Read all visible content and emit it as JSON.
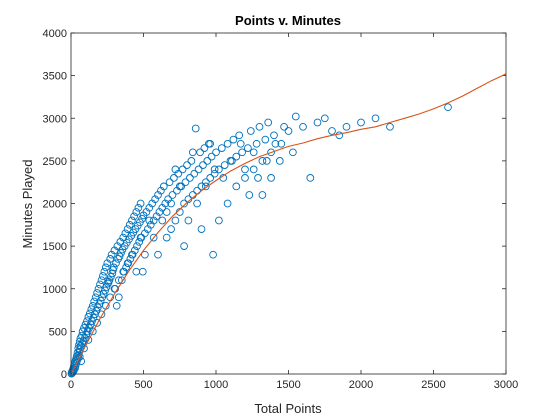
{
  "chart_data": {
    "type": "scatter",
    "title": "Points v. Minutes",
    "xlabel": "Total Points",
    "ylabel": "Minutes Played",
    "xlim": [
      0,
      3000
    ],
    "ylim": [
      0,
      4000
    ],
    "x_ticks": [
      "0",
      "500",
      "1000",
      "1500",
      "2000",
      "2500",
      "3000"
    ],
    "y_ticks": [
      "0",
      "500",
      "1000",
      "1500",
      "2000",
      "2500",
      "3000",
      "3500",
      "4000"
    ],
    "x_tick_values": [
      0,
      500,
      1000,
      1500,
      2000,
      2500,
      3000
    ],
    "y_tick_values": [
      0,
      500,
      1000,
      1500,
      2000,
      2500,
      3000,
      3500,
      4000
    ],
    "grid": false,
    "colors": {
      "points": "#0072BD",
      "fit": "#D95319"
    },
    "series": [
      {
        "kind": "scatter",
        "points": [
          [
            3,
            5
          ],
          [
            5,
            20
          ],
          [
            8,
            10
          ],
          [
            10,
            40
          ],
          [
            12,
            25
          ],
          [
            15,
            60
          ],
          [
            18,
            35
          ],
          [
            20,
            90
          ],
          [
            22,
            50
          ],
          [
            25,
            120
          ],
          [
            28,
            70
          ],
          [
            30,
            150
          ],
          [
            32,
            100
          ],
          [
            35,
            180
          ],
          [
            38,
            130
          ],
          [
            40,
            210
          ],
          [
            42,
            160
          ],
          [
            45,
            250
          ],
          [
            48,
            190
          ],
          [
            50,
            300
          ],
          [
            52,
            220
          ],
          [
            55,
            340
          ],
          [
            58,
            260
          ],
          [
            60,
            380
          ],
          [
            62,
            290
          ],
          [
            65,
            420
          ],
          [
            68,
            330
          ],
          [
            70,
            150
          ],
          [
            75,
            450
          ],
          [
            78,
            360
          ],
          [
            80,
            500
          ],
          [
            85,
            390
          ],
          [
            90,
            540
          ],
          [
            95,
            420
          ],
          [
            100,
            580
          ],
          [
            105,
            460
          ],
          [
            110,
            620
          ],
          [
            115,
            500
          ],
          [
            120,
            670
          ],
          [
            125,
            540
          ],
          [
            130,
            710
          ],
          [
            135,
            580
          ],
          [
            140,
            760
          ],
          [
            145,
            620
          ],
          [
            150,
            800
          ],
          [
            155,
            660
          ],
          [
            160,
            850
          ],
          [
            165,
            700
          ],
          [
            170,
            900
          ],
          [
            175,
            740
          ],
          [
            180,
            950
          ],
          [
            185,
            780
          ],
          [
            190,
            1000
          ],
          [
            195,
            820
          ],
          [
            200,
            1050
          ],
          [
            205,
            860
          ],
          [
            210,
            1100
          ],
          [
            215,
            900
          ],
          [
            220,
            1150
          ],
          [
            225,
            940
          ],
          [
            230,
            1200
          ],
          [
            235,
            980
          ],
          [
            240,
            1250
          ],
          [
            245,
            1020
          ],
          [
            250,
            1300
          ],
          [
            255,
            1060
          ],
          [
            260,
            1080
          ],
          [
            265,
            1100
          ],
          [
            270,
            1350
          ],
          [
            275,
            1140
          ],
          [
            280,
            1400
          ],
          [
            285,
            1180
          ],
          [
            290,
            1220
          ],
          [
            295,
            1250
          ],
          [
            300,
            1450
          ],
          [
            305,
            1000
          ],
          [
            310,
            1300
          ],
          [
            315,
            800
          ],
          [
            320,
            1500
          ],
          [
            325,
            1350
          ],
          [
            330,
            900
          ],
          [
            335,
            1380
          ],
          [
            340,
            1550
          ],
          [
            345,
            1420
          ],
          [
            350,
            1100
          ],
          [
            355,
            1460
          ],
          [
            360,
            1600
          ],
          [
            365,
            1200
          ],
          [
            370,
            1500
          ],
          [
            375,
            1650
          ],
          [
            380,
            1250
          ],
          [
            385,
            1540
          ],
          [
            390,
            1700
          ],
          [
            395,
            1300
          ],
          [
            400,
            1580
          ],
          [
            405,
            1750
          ],
          [
            410,
            1350
          ],
          [
            415,
            1620
          ],
          [
            420,
            1800
          ],
          [
            425,
            1400
          ],
          [
            430,
            1660
          ],
          [
            435,
            1850
          ],
          [
            440,
            1450
          ],
          [
            445,
            1700
          ],
          [
            450,
            1900
          ],
          [
            455,
            1500
          ],
          [
            460,
            1740
          ],
          [
            465,
            1950
          ],
          [
            470,
            1550
          ],
          [
            475,
            1780
          ],
          [
            480,
            2000
          ],
          [
            485,
            1600
          ],
          [
            490,
            1820
          ],
          [
            495,
            1200
          ],
          [
            500,
            1860
          ],
          [
            510,
            1650
          ],
          [
            520,
            1900
          ],
          [
            530,
            1700
          ],
          [
            540,
            1950
          ],
          [
            550,
            1750
          ],
          [
            560,
            2000
          ],
          [
            570,
            1800
          ],
          [
            580,
            2050
          ],
          [
            590,
            1850
          ],
          [
            600,
            2100
          ],
          [
            610,
            1900
          ],
          [
            620,
            2150
          ],
          [
            630,
            1950
          ],
          [
            640,
            2200
          ],
          [
            650,
            2000
          ],
          [
            660,
            1600
          ],
          [
            670,
            2050
          ],
          [
            680,
            2250
          ],
          [
            690,
            1700
          ],
          [
            700,
            2100
          ],
          [
            710,
            2300
          ],
          [
            720,
            1800
          ],
          [
            730,
            2150
          ],
          [
            740,
            2350
          ],
          [
            750,
            1900
          ],
          [
            760,
            2200
          ],
          [
            770,
            2400
          ],
          [
            780,
            2000
          ],
          [
            790,
            2250
          ],
          [
            800,
            2450
          ],
          [
            810,
            2050
          ],
          [
            820,
            2300
          ],
          [
            830,
            2500
          ],
          [
            840,
            2100
          ],
          [
            850,
            2350
          ],
          [
            860,
            2880
          ],
          [
            870,
            2150
          ],
          [
            880,
            2400
          ],
          [
            890,
            2600
          ],
          [
            900,
            2200
          ],
          [
            910,
            2450
          ],
          [
            920,
            2650
          ],
          [
            930,
            2250
          ],
          [
            940,
            2500
          ],
          [
            950,
            2700
          ],
          [
            960,
            2300
          ],
          [
            970,
            2550
          ],
          [
            980,
            1400
          ],
          [
            990,
            2350
          ],
          [
            1000,
            2600
          ],
          [
            1020,
            2400
          ],
          [
            1040,
            2650
          ],
          [
            1060,
            2450
          ],
          [
            1080,
            2700
          ],
          [
            1100,
            2500
          ],
          [
            1120,
            2750
          ],
          [
            1140,
            2550
          ],
          [
            1160,
            2800
          ],
          [
            1180,
            2600
          ],
          [
            1200,
            2300
          ],
          [
            1220,
            2650
          ],
          [
            1240,
            2850
          ],
          [
            1260,
            2400
          ],
          [
            1280,
            2700
          ],
          [
            1300,
            2900
          ],
          [
            1320,
            2500
          ],
          [
            1340,
            2750
          ],
          [
            1360,
            2950
          ],
          [
            1380,
            2600
          ],
          [
            1400,
            2800
          ],
          [
            1450,
            2700
          ],
          [
            1500,
            2850
          ],
          [
            1550,
            3020
          ],
          [
            1600,
            2900
          ],
          [
            1650,
            2300
          ],
          [
            1700,
            2950
          ],
          [
            1750,
            3000
          ],
          [
            1800,
            2850
          ],
          [
            1850,
            2800
          ],
          [
            1900,
            2900
          ],
          [
            2000,
            2950
          ],
          [
            2100,
            3000
          ],
          [
            2200,
            2900
          ],
          [
            2600,
            3130
          ],
          [
            60,
            200
          ],
          [
            120,
            400
          ],
          [
            180,
            600
          ],
          [
            240,
            800
          ],
          [
            300,
            1000
          ],
          [
            360,
            1200
          ],
          [
            420,
            1400
          ],
          [
            480,
            1600
          ],
          [
            540,
            1800
          ],
          [
            600,
            1400
          ],
          [
            660,
            1900
          ],
          [
            720,
            2400
          ],
          [
            780,
            1500
          ],
          [
            840,
            2600
          ],
          [
            900,
            1700
          ],
          [
            960,
            2700
          ],
          [
            1020,
            1800
          ],
          [
            1080,
            2000
          ],
          [
            1140,
            2200
          ],
          [
            1200,
            2400
          ],
          [
            1260,
            2600
          ],
          [
            1320,
            2100
          ],
          [
            1380,
            2300
          ],
          [
            1440,
            2500
          ],
          [
            90,
            300
          ],
          [
            150,
            500
          ],
          [
            210,
            700
          ],
          [
            270,
            900
          ],
          [
            330,
            1100
          ],
          [
            390,
            1300
          ],
          [
            450,
            1200
          ],
          [
            510,
            1400
          ],
          [
            570,
            1600
          ],
          [
            630,
            1800
          ],
          [
            690,
            2000
          ],
          [
            750,
            2200
          ],
          [
            810,
            1800
          ],
          [
            870,
            2000
          ],
          [
            930,
            2200
          ],
          [
            990,
            2400
          ],
          [
            1050,
            2300
          ],
          [
            1110,
            2500
          ],
          [
            1170,
            2700
          ],
          [
            1230,
            2100
          ],
          [
            1290,
            2300
          ],
          [
            1350,
            2500
          ],
          [
            1410,
            2700
          ],
          [
            1470,
            2900
          ],
          [
            1530,
            2600
          ]
        ]
      },
      {
        "kind": "fit-line",
        "points": [
          [
            0,
            0
          ],
          [
            100,
            330
          ],
          [
            200,
            650
          ],
          [
            300,
            940
          ],
          [
            400,
            1210
          ],
          [
            500,
            1450
          ],
          [
            600,
            1660
          ],
          [
            700,
            1850
          ],
          [
            800,
            2010
          ],
          [
            900,
            2150
          ],
          [
            1000,
            2270
          ],
          [
            1100,
            2380
          ],
          [
            1200,
            2470
          ],
          [
            1300,
            2550
          ],
          [
            1400,
            2610
          ],
          [
            1500,
            2670
          ],
          [
            1600,
            2710
          ],
          [
            1700,
            2760
          ],
          [
            1800,
            2800
          ],
          [
            1900,
            2830
          ],
          [
            2000,
            2870
          ],
          [
            2100,
            2900
          ],
          [
            2200,
            2950
          ],
          [
            2300,
            3000
          ],
          [
            2400,
            3050
          ],
          [
            2500,
            3110
          ],
          [
            2600,
            3180
          ],
          [
            2700,
            3260
          ],
          [
            2800,
            3350
          ],
          [
            2900,
            3440
          ],
          [
            3000,
            3520
          ]
        ]
      }
    ]
  }
}
